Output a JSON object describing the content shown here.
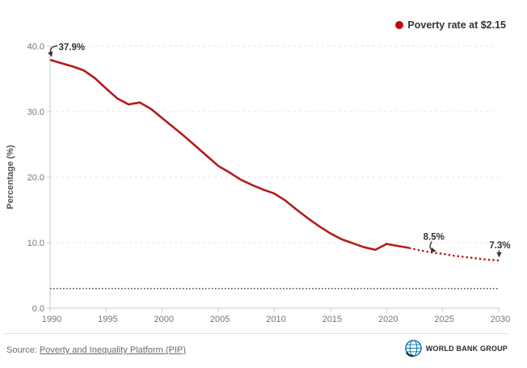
{
  "legend": {
    "label": "Poverty rate at $2.15"
  },
  "colors": {
    "line_red": "#b31b1b",
    "legend_dot": "#bb0b11",
    "annotation": "#333333",
    "axis_text": "#767676",
    "grid": "#e4e4e4",
    "axis_line": "#c9c9c9",
    "target_line": "#4d4d4d",
    "logo_blue": "#0076a8",
    "logo_dark_blue": "#00334d"
  },
  "y_axis": {
    "title": "Percentage (%)",
    "tick_labels": [
      "40.0",
      "30.0",
      "20.0",
      "10.0",
      "0.0"
    ],
    "tick_values": [
      40,
      30,
      20,
      10,
      0
    ]
  },
  "x_axis": {
    "tick_labels": [
      "1990",
      "1995",
      "2000",
      "2005",
      "2010",
      "2015",
      "2020",
      "2025",
      "2030"
    ],
    "tick_values": [
      1990,
      1995,
      2000,
      2005,
      2010,
      2015,
      2020,
      2025,
      2030
    ]
  },
  "annotations": [
    {
      "label": "37.9%",
      "year": 1990,
      "value": 37.9,
      "arrow": "hook-down-left"
    },
    {
      "label": "8.5%",
      "year": 2024,
      "value": 8.5,
      "arrow": "hook-down-right"
    },
    {
      "label": "7.3%",
      "year": 2030,
      "value": 7.3,
      "arrow": "straight-down"
    }
  ],
  "footer": {
    "source_prefix": "Source:",
    "source_link": "Poverty and Inequality Platform (PIP)",
    "logo_text": "WORLD BANK GROUP"
  },
  "chart_data": {
    "type": "line",
    "title": "",
    "xlabel": "",
    "ylabel": "Percentage (%)",
    "xlim": [
      1990,
      2030
    ],
    "ylim": [
      0,
      40
    ],
    "grid": "horizontal-dashed",
    "legend_position": "top-right",
    "series": [
      {
        "name": "Poverty rate at $2.15",
        "style": "solid",
        "color": "#b31b1b",
        "x": [
          1990,
          1991,
          1992,
          1993,
          1994,
          1995,
          1996,
          1997,
          1998,
          1999,
          2000,
          2001,
          2002,
          2003,
          2004,
          2005,
          2006,
          2007,
          2008,
          2009,
          2010,
          2011,
          2012,
          2013,
          2014,
          2015,
          2016,
          2017,
          2018,
          2019,
          2020,
          2021,
          2022
        ],
        "values": [
          37.9,
          37.4,
          36.9,
          36.3,
          35.1,
          33.5,
          32.0,
          31.1,
          31.4,
          30.4,
          29.0,
          27.6,
          26.2,
          24.7,
          23.2,
          21.7,
          20.7,
          19.6,
          18.8,
          18.1,
          17.5,
          16.4,
          15.0,
          13.7,
          12.5,
          11.4,
          10.5,
          9.9,
          9.3,
          8.9,
          9.8,
          9.5,
          9.2
        ]
      },
      {
        "name": "Poverty rate at $2.15 (projection)",
        "style": "dotted",
        "color": "#b31b1b",
        "x": [
          2022,
          2023,
          2024,
          2025,
          2026,
          2027,
          2028,
          2029,
          2030
        ],
        "values": [
          9.2,
          8.8,
          8.5,
          8.3,
          8.0,
          7.8,
          7.6,
          7.4,
          7.3
        ]
      }
    ],
    "reference_line": {
      "value": 3,
      "style": "dotted",
      "color": "#4d4d4d"
    }
  }
}
